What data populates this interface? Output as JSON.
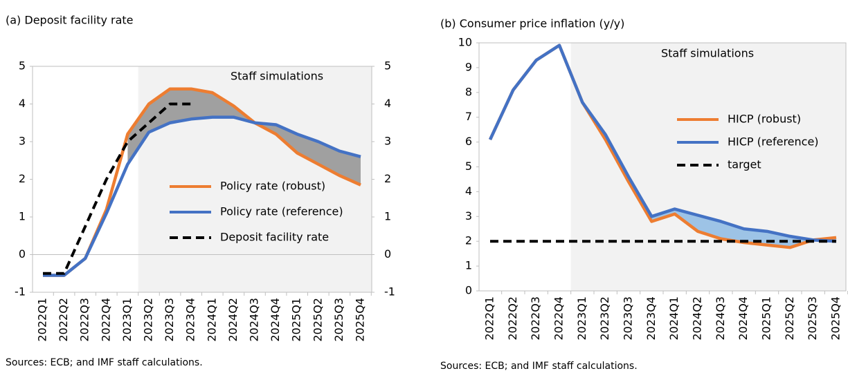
{
  "chart_data": [
    {
      "type": "line",
      "title": "(a) Deposit facility rate",
      "annotation": "Staff simulations",
      "source": "Sources: ECB; and IMF staff calculations.",
      "categories": [
        "2022Q1",
        "2022Q2",
        "2022Q3",
        "2022Q4",
        "2023Q1",
        "2023Q2",
        "2023Q3",
        "2023Q4",
        "2024Q1",
        "2024Q2",
        "2024Q3",
        "2024Q4",
        "2025Q1",
        "2025Q2",
        "2025Q3",
        "2025Q4"
      ],
      "series": [
        {
          "name": "Policy rate (robust)",
          "color": "#ed7d31",
          "style": "solid",
          "values": [
            -0.55,
            -0.55,
            -0.1,
            1.2,
            3.2,
            4.0,
            4.4,
            4.4,
            4.3,
            3.95,
            3.5,
            3.2,
            2.7,
            2.4,
            2.1,
            1.85
          ]
        },
        {
          "name": "Policy rate (reference)",
          "color": "#4472c4",
          "style": "solid",
          "values": [
            -0.55,
            -0.55,
            -0.1,
            1.1,
            2.4,
            3.25,
            3.5,
            3.6,
            3.65,
            3.65,
            3.5,
            3.45,
            3.2,
            3.0,
            2.75,
            2.6
          ]
        },
        {
          "name": "Deposit facility rate",
          "color": "#000000",
          "style": "dashed",
          "values": [
            -0.5,
            -0.5,
            0.75,
            2.0,
            3.0,
            3.5,
            4.0,
            4.0,
            null,
            null,
            null,
            null,
            null,
            null,
            null,
            null
          ]
        }
      ],
      "ylim": [
        -1,
        5
      ],
      "yticks": [
        -1,
        0,
        1,
        2,
        3,
        4,
        5
      ],
      "y2lim": [
        -1,
        5
      ],
      "y2ticks": [
        -1,
        0,
        1,
        2,
        3,
        4,
        5
      ],
      "shade_color": "#a0a0a0",
      "legend": "center right"
    },
    {
      "type": "line",
      "title": "(b) Consumer price inflation (y/y)",
      "annotation": "Staff simulations",
      "source": "Sources: ECB; and IMF staff calculations.",
      "categories": [
        "2022Q1",
        "2022Q2",
        "2022Q3",
        "2022Q4",
        "2023Q1",
        "2023Q2",
        "2023Q3",
        "2023Q4",
        "2024Q1",
        "2024Q2",
        "2024Q3",
        "2024Q4",
        "2025Q1",
        "2025Q2",
        "2025Q3",
        "2025Q4"
      ],
      "series": [
        {
          "name": "HICP (robust)",
          "color": "#ed7d31",
          "style": "solid",
          "values": [
            6.1,
            8.1,
            9.3,
            9.9,
            7.6,
            6.1,
            4.4,
            2.8,
            3.1,
            2.4,
            2.1,
            1.95,
            1.85,
            1.75,
            2.05,
            2.15
          ]
        },
        {
          "name": "HICP (reference)",
          "color": "#4472c4",
          "style": "solid",
          "values": [
            6.1,
            8.1,
            9.3,
            9.9,
            7.6,
            6.3,
            4.6,
            3.0,
            3.3,
            3.05,
            2.8,
            2.5,
            2.4,
            2.2,
            2.05,
            2.0
          ]
        },
        {
          "name": "target",
          "color": "#000000",
          "style": "dashed",
          "values": [
            2,
            2,
            2,
            2,
            2,
            2,
            2,
            2,
            2,
            2,
            2,
            2,
            2,
            2,
            2,
            2
          ]
        }
      ],
      "ylim": [
        0,
        10
      ],
      "yticks": [
        0,
        1,
        2,
        3,
        4,
        5,
        6,
        7,
        8,
        9,
        10
      ],
      "shade_color": "#9dc3e6",
      "legend": "upper right"
    }
  ]
}
